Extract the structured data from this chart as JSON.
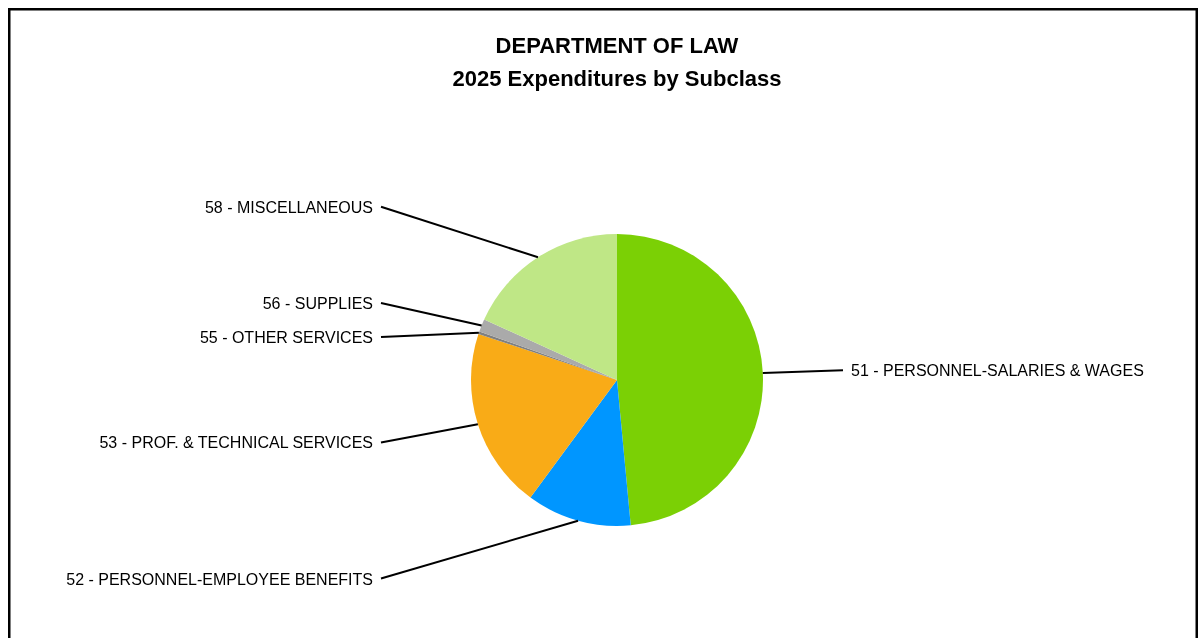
{
  "chart_data": {
    "type": "pie",
    "title": "DEPARTMENT OF LAW",
    "subtitle": "2025 Expenditures by Subclass",
    "categories": [
      "51 - PERSONNEL-SALARIES & WAGES",
      "52 - PERSONNEL-EMPLOYEE BENEFITS",
      "53 - PROF. & TECHNICAL SERVICES",
      "55 - OTHER SERVICES",
      "56 - SUPPLIES",
      "58 - MISCELLANEOUS"
    ],
    "values": [
      48.5,
      11.6,
      20.0,
      0.3,
      1.4,
      18.2
    ],
    "colors": [
      "#7bd005",
      "#0096ff",
      "#f9ab17",
      "#808080",
      "#aaaaaa",
      "#bfe786"
    ]
  }
}
